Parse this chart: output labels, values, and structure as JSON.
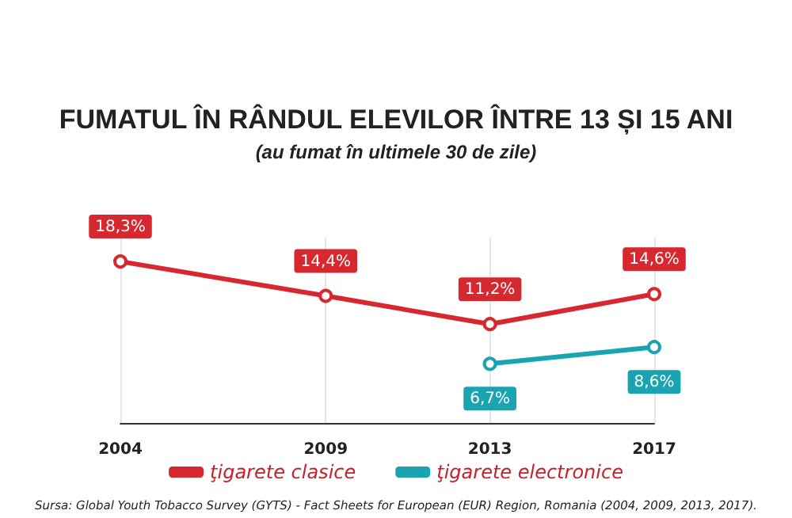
{
  "chart_data": {
    "type": "line",
    "title": "FUMATUL ÎN RÂNDUL ELEVILOR ÎNTRE 13 ȘI 15 ANI",
    "subtitle": "(au fumat în ultimele 30 de zile)",
    "xlim": [
      2004,
      2017
    ],
    "xticks": [
      2004,
      2009,
      2013,
      2017
    ],
    "grid": "x",
    "legend": "bottom",
    "marker": "circle",
    "line_style": "solid",
    "tick_labels": "x",
    "series": [
      {
        "name": "ţigarete clasice",
        "color": "#d7282f",
        "x": [
          2004,
          2009,
          2013,
          2017
        ],
        "values": [
          18.3,
          14.4,
          11.2,
          14.6
        ],
        "value_labels": [
          "18,3%",
          "14,4%",
          "11,2%",
          "14,6%"
        ]
      },
      {
        "name": "ţigarete electronice",
        "color": "#1aa3b0",
        "x": [
          2013,
          2017
        ],
        "values": [
          6.7,
          8.6
        ],
        "value_labels": [
          "6,7%",
          "8,6%"
        ]
      }
    ],
    "annotations": [
      "Sursa: Global Youth Tobacco Survey (GYTS) - Fact Sheets for European (EUR) Region, Romania (2004, 2009, 2013, 2017)."
    ]
  }
}
